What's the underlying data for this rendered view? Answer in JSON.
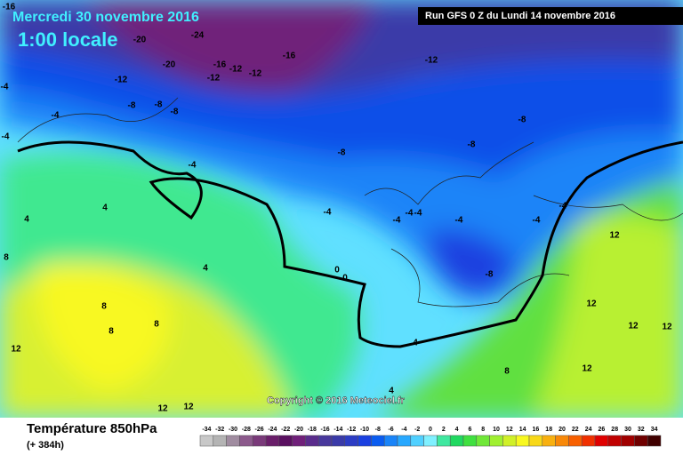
{
  "header": {
    "date": "Mercredi 30 novembre 2016",
    "time": "1:00 locale",
    "run": "Run GFS 0 Z du Lundi 14 novembre 2016"
  },
  "copyright": "Copyright © 2016 Meteociel.fr",
  "footer": {
    "title": "Température 850hPa",
    "lead": "(+ 384h)"
  },
  "map_labels": [
    -16,
    -20,
    -24,
    -20,
    -16,
    -12,
    -12,
    -16,
    -12,
    -12,
    -4,
    -4,
    -12,
    -8,
    -8,
    -4,
    -4,
    -8,
    -8,
    -8,
    -8,
    -4,
    -4,
    -4,
    -4,
    -4,
    -4,
    -4,
    4,
    4,
    4,
    8,
    0,
    0,
    -8,
    8,
    8,
    8,
    12,
    12,
    12,
    12,
    12,
    12,
    8,
    4,
    12,
    12,
    4
  ],
  "legend": {
    "values": [
      -34,
      -32,
      -30,
      -28,
      -26,
      -24,
      -22,
      -20,
      -18,
      -16,
      -14,
      -12,
      -10,
      -8,
      -6,
      -4,
      -2,
      0,
      2,
      4,
      6,
      8,
      10,
      12,
      14,
      16,
      18,
      20,
      22,
      24,
      26,
      28,
      30,
      32,
      34
    ],
    "colors": [
      "#c8c8c8",
      "#b4b4b4",
      "#a08ca0",
      "#8c5a8c",
      "#7a3a7a",
      "#6a1e6a",
      "#5a1060",
      "#70207a",
      "#5a2c8c",
      "#48389c",
      "#3a3aa8",
      "#2c3cc4",
      "#1a40e0",
      "#0a5cf0",
      "#1a84f8",
      "#28a8ff",
      "#50d0ff",
      "#80f0ff",
      "#40e8a0",
      "#20d860",
      "#40e040",
      "#70e838",
      "#a0f030",
      "#d0f028",
      "#f8f820",
      "#f8d818",
      "#f8b010",
      "#f88808",
      "#f86000",
      "#f03000",
      "#e00000",
      "#c00000",
      "#a00000",
      "#700000",
      "#400000"
    ]
  }
}
